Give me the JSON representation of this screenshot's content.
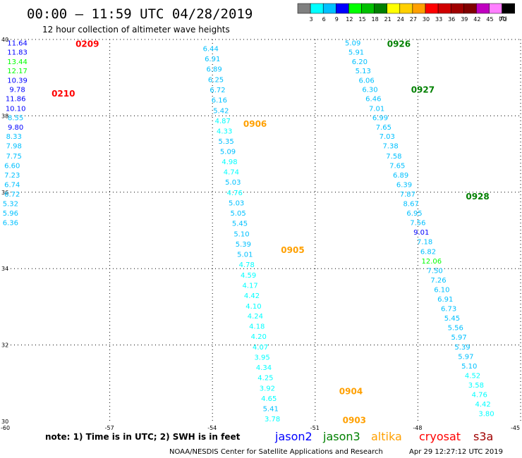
{
  "header": {
    "title": "00:00 – 11:59 UTC 04/28/2019",
    "subtitle": "12 hour collection of altimeter wave heights"
  },
  "colors": {
    "grid": "#000000",
    "thresholds": [
      {
        "label": "",
        "color": "#808080"
      },
      {
        "label": "3",
        "color": "#00ffff"
      },
      {
        "label": "6",
        "color": "#00c0ff"
      },
      {
        "label": "9",
        "color": "#0000ff"
      },
      {
        "label": "12",
        "color": "#00ff00"
      },
      {
        "label": "15",
        "color": "#00c000"
      },
      {
        "label": "18",
        "color": "#008000"
      },
      {
        "label": "21",
        "color": "#ffff00"
      },
      {
        "label": "24",
        "color": "#ffd000"
      },
      {
        "label": "27",
        "color": "#ffa000"
      },
      {
        "label": "30",
        "color": "#ff0000"
      },
      {
        "label": "33",
        "color": "#d00000"
      },
      {
        "label": "36",
        "color": "#a00000"
      },
      {
        "label": "39",
        "color": "#800000"
      },
      {
        "label": "42",
        "color": "#c000c0"
      },
      {
        "label": "45",
        "color": "#ff80ff"
      },
      {
        "label": "70",
        "color": "#000000"
      }
    ],
    "unit": "(ft)"
  },
  "chart_data": {
    "type": "scatter",
    "xlim": [
      -60,
      -45
    ],
    "ylim": [
      30,
      40
    ],
    "xticks": [
      "-60",
      "-57",
      "-54",
      "-51",
      "-48",
      "-45"
    ],
    "yticks": [
      "30",
      "32",
      "34",
      "36",
      "38",
      "40"
    ],
    "grid": true,
    "tracks": [
      {
        "pass": "0209",
        "satellite": "cryosat",
        "x": -58.0,
        "y": 39.9
      },
      {
        "pass": "0210",
        "satellite": "cryosat",
        "x": -58.7,
        "y": 38.6
      },
      {
        "pass": "0906",
        "satellite": "altika",
        "x": -53.1,
        "y": 37.8
      },
      {
        "pass": "0905",
        "satellite": "altika",
        "x": -52.0,
        "y": 34.5
      },
      {
        "pass": "0904",
        "satellite": "altika",
        "x": -50.3,
        "y": 30.8
      },
      {
        "pass": "0903",
        "satellite": "altika",
        "x": -50.2,
        "y": 30.05
      },
      {
        "pass": "0926",
        "satellite": "jason3",
        "x": -48.9,
        "y": 39.9
      },
      {
        "pass": "0927",
        "satellite": "jason3",
        "x": -48.2,
        "y": 38.7
      },
      {
        "pass": "0928",
        "satellite": "jason3",
        "x": -46.6,
        "y": 35.9
      }
    ],
    "observations": [
      {
        "x": -59.7,
        "y": 39.92,
        "v": "11.64",
        "c": "#0000ff"
      },
      {
        "x": -59.7,
        "y": 39.68,
        "v": "11.83",
        "c": "#0000ff"
      },
      {
        "x": -59.7,
        "y": 39.43,
        "v": "13.44",
        "c": "#00ff00"
      },
      {
        "x": -59.7,
        "y": 39.19,
        "v": "12.17",
        "c": "#00ff00"
      },
      {
        "x": -59.7,
        "y": 38.94,
        "v": "10.39",
        "c": "#0000ff"
      },
      {
        "x": -59.7,
        "y": 38.7,
        "v": "9.78",
        "c": "#0000ff"
      },
      {
        "x": -59.75,
        "y": 38.46,
        "v": "11.86",
        "c": "#0000ff"
      },
      {
        "x": -59.75,
        "y": 38.2,
        "v": "10.10",
        "c": "#0000ff"
      },
      {
        "x": -59.75,
        "y": 37.96,
        "v": "8.55",
        "c": "#00c0ff"
      },
      {
        "x": -59.75,
        "y": 37.71,
        "v": "9.80",
        "c": "#0000ff"
      },
      {
        "x": -59.8,
        "y": 37.47,
        "v": "8.33",
        "c": "#00c0ff"
      },
      {
        "x": -59.8,
        "y": 37.22,
        "v": "7.98",
        "c": "#00c0ff"
      },
      {
        "x": -59.8,
        "y": 36.96,
        "v": "7.75",
        "c": "#00c0ff"
      },
      {
        "x": -59.85,
        "y": 36.71,
        "v": "6.60",
        "c": "#00c0ff"
      },
      {
        "x": -59.85,
        "y": 36.46,
        "v": "7.23",
        "c": "#00c0ff"
      },
      {
        "x": -59.85,
        "y": 36.21,
        "v": "6.74",
        "c": "#00c0ff"
      },
      {
        "x": -59.85,
        "y": 35.96,
        "v": "6.72",
        "c": "#00c0ff"
      },
      {
        "x": -59.9,
        "y": 35.71,
        "v": "5.32",
        "c": "#00c0ff"
      },
      {
        "x": -59.9,
        "y": 35.46,
        "v": "5.96",
        "c": "#00c0ff"
      },
      {
        "x": -59.9,
        "y": 35.21,
        "v": "6.36",
        "c": "#00c0ff"
      },
      {
        "x": -54.05,
        "y": 39.77,
        "v": "6.44",
        "c": "#00c0ff"
      },
      {
        "x": -54.0,
        "y": 39.5,
        "v": "6.91",
        "c": "#00c0ff"
      },
      {
        "x": -53.95,
        "y": 39.23,
        "v": "6.89",
        "c": "#00c0ff"
      },
      {
        "x": -53.9,
        "y": 38.96,
        "v": "6.25",
        "c": "#00c0ff"
      },
      {
        "x": -53.85,
        "y": 38.69,
        "v": "6.72",
        "c": "#00c0ff"
      },
      {
        "x": -53.8,
        "y": 38.42,
        "v": "6.16",
        "c": "#00c0ff"
      },
      {
        "x": -53.75,
        "y": 38.15,
        "v": "5.42",
        "c": "#00c0ff"
      },
      {
        "x": -53.7,
        "y": 37.88,
        "v": "4.87",
        "c": "#00ffff"
      },
      {
        "x": -53.65,
        "y": 37.61,
        "v": "4.33",
        "c": "#00ffff"
      },
      {
        "x": -53.6,
        "y": 37.34,
        "v": "5.35",
        "c": "#00c0ff"
      },
      {
        "x": -53.55,
        "y": 37.08,
        "v": "5.09",
        "c": "#00c0ff"
      },
      {
        "x": -53.5,
        "y": 36.81,
        "v": "4.98",
        "c": "#00ffff"
      },
      {
        "x": -53.45,
        "y": 36.54,
        "v": "4.74",
        "c": "#00ffff"
      },
      {
        "x": -53.4,
        "y": 36.27,
        "v": "5.03",
        "c": "#00c0ff"
      },
      {
        "x": -53.35,
        "y": 36.0,
        "v": "4.76",
        "c": "#00ffff"
      },
      {
        "x": -53.3,
        "y": 35.73,
        "v": "5.03",
        "c": "#00c0ff"
      },
      {
        "x": -53.25,
        "y": 35.46,
        "v": "5.05",
        "c": "#00c0ff"
      },
      {
        "x": -53.2,
        "y": 35.19,
        "v": "5.45",
        "c": "#00c0ff"
      },
      {
        "x": -53.15,
        "y": 34.92,
        "v": "5.10",
        "c": "#00c0ff"
      },
      {
        "x": -53.1,
        "y": 34.65,
        "v": "5.39",
        "c": "#00c0ff"
      },
      {
        "x": -53.05,
        "y": 34.38,
        "v": "5.01",
        "c": "#00c0ff"
      },
      {
        "x": -53.0,
        "y": 34.11,
        "v": "4.78",
        "c": "#00ffff"
      },
      {
        "x": -52.95,
        "y": 33.84,
        "v": "4.59",
        "c": "#00ffff"
      },
      {
        "x": -52.9,
        "y": 33.57,
        "v": "4.17",
        "c": "#00ffff"
      },
      {
        "x": -52.85,
        "y": 33.3,
        "v": "4.42",
        "c": "#00ffff"
      },
      {
        "x": -52.8,
        "y": 33.03,
        "v": "4.10",
        "c": "#00ffff"
      },
      {
        "x": -52.75,
        "y": 32.77,
        "v": "4.24",
        "c": "#00ffff"
      },
      {
        "x": -52.7,
        "y": 32.5,
        "v": "4.18",
        "c": "#00ffff"
      },
      {
        "x": -52.65,
        "y": 32.23,
        "v": "4.20",
        "c": "#00ffff"
      },
      {
        "x": -52.6,
        "y": 31.96,
        "v": "4.07",
        "c": "#00ffff"
      },
      {
        "x": -52.55,
        "y": 31.69,
        "v": "3.95",
        "c": "#00ffff"
      },
      {
        "x": -52.5,
        "y": 31.42,
        "v": "4.34",
        "c": "#00ffff"
      },
      {
        "x": -52.45,
        "y": 31.15,
        "v": "4.25",
        "c": "#00ffff"
      },
      {
        "x": -52.4,
        "y": 30.88,
        "v": "3.92",
        "c": "#00ffff"
      },
      {
        "x": -52.35,
        "y": 30.61,
        "v": "4.65",
        "c": "#00ffff"
      },
      {
        "x": -52.3,
        "y": 30.34,
        "v": "5.41",
        "c": "#00c0ff"
      },
      {
        "x": -52.25,
        "y": 30.07,
        "v": "3.78",
        "c": "#00ffff"
      },
      {
        "x": -52.2,
        "y": 29.8,
        "v": "3.22",
        "c": "#00ffff"
      },
      {
        "x": -52.15,
        "y": 29.53,
        "v": "4.15",
        "c": "#00ffff"
      },
      {
        "x": -52.1,
        "y": 29.26,
        "v": "4.17",
        "c": "#00ffff"
      },
      {
        "x": -52.05,
        "y": 29.05,
        "v": "3.54",
        "c": "#00ffff"
      },
      {
        "x": -49.9,
        "y": 39.92,
        "v": "5.09",
        "c": "#00c0ff"
      },
      {
        "x": -49.8,
        "y": 39.68,
        "v": "5.91",
        "c": "#00c0ff"
      },
      {
        "x": -49.7,
        "y": 39.43,
        "v": "6.20",
        "c": "#00c0ff"
      },
      {
        "x": -49.6,
        "y": 39.19,
        "v": "5.13",
        "c": "#00c0ff"
      },
      {
        "x": -49.5,
        "y": 38.94,
        "v": "6.06",
        "c": "#00c0ff"
      },
      {
        "x": -49.4,
        "y": 38.7,
        "v": "6.30",
        "c": "#00c0ff"
      },
      {
        "x": -49.3,
        "y": 38.46,
        "v": "6.46",
        "c": "#00c0ff"
      },
      {
        "x": -49.2,
        "y": 38.2,
        "v": "7.01",
        "c": "#00c0ff"
      },
      {
        "x": -49.1,
        "y": 37.96,
        "v": "6.99",
        "c": "#00c0ff"
      },
      {
        "x": -49.0,
        "y": 37.71,
        "v": "7.65",
        "c": "#00c0ff"
      },
      {
        "x": -48.9,
        "y": 37.47,
        "v": "7.03",
        "c": "#00c0ff"
      },
      {
        "x": -48.8,
        "y": 37.22,
        "v": "7.38",
        "c": "#00c0ff"
      },
      {
        "x": -48.7,
        "y": 36.96,
        "v": "7.58",
        "c": "#00c0ff"
      },
      {
        "x": -48.6,
        "y": 36.71,
        "v": "7.65",
        "c": "#00c0ff"
      },
      {
        "x": -48.5,
        "y": 36.46,
        "v": "6.89",
        "c": "#00c0ff"
      },
      {
        "x": -48.4,
        "y": 36.21,
        "v": "6.39",
        "c": "#00c0ff"
      },
      {
        "x": -48.3,
        "y": 35.96,
        "v": "7.87",
        "c": "#00c0ff"
      },
      {
        "x": -48.2,
        "y": 35.71,
        "v": "8.67",
        "c": "#00c0ff"
      },
      {
        "x": -48.1,
        "y": 35.46,
        "v": "6.95",
        "c": "#00c0ff"
      },
      {
        "x": -48.0,
        "y": 35.21,
        "v": "7.56",
        "c": "#00c0ff"
      },
      {
        "x": -47.9,
        "y": 34.96,
        "v": "9.01",
        "c": "#0000ff"
      },
      {
        "x": -47.8,
        "y": 34.71,
        "v": "7.18",
        "c": "#00c0ff"
      },
      {
        "x": -47.7,
        "y": 34.46,
        "v": "6.82",
        "c": "#00c0ff"
      },
      {
        "x": -47.6,
        "y": 34.21,
        "v": "12.06",
        "c": "#00ff00"
      },
      {
        "x": -47.5,
        "y": 33.96,
        "v": "7.50",
        "c": "#00c0ff"
      },
      {
        "x": -47.4,
        "y": 33.71,
        "v": "7.26",
        "c": "#00c0ff"
      },
      {
        "x": -47.3,
        "y": 33.46,
        "v": "6.10",
        "c": "#00c0ff"
      },
      {
        "x": -47.2,
        "y": 33.21,
        "v": "6.91",
        "c": "#00c0ff"
      },
      {
        "x": -47.1,
        "y": 32.96,
        "v": "6.73",
        "c": "#00c0ff"
      },
      {
        "x": -47.0,
        "y": 32.71,
        "v": "5.45",
        "c": "#00c0ff"
      },
      {
        "x": -46.9,
        "y": 32.46,
        "v": "5.56",
        "c": "#00c0ff"
      },
      {
        "x": -46.8,
        "y": 32.21,
        "v": "5.97",
        "c": "#00c0ff"
      },
      {
        "x": -46.7,
        "y": 31.96,
        "v": "5.39",
        "c": "#00c0ff"
      },
      {
        "x": -46.6,
        "y": 31.71,
        "v": "5.97",
        "c": "#00c0ff"
      },
      {
        "x": -46.5,
        "y": 31.46,
        "v": "5.10",
        "c": "#00c0ff"
      },
      {
        "x": -46.4,
        "y": 31.21,
        "v": "4.52",
        "c": "#00ffff"
      },
      {
        "x": -46.3,
        "y": 30.96,
        "v": "3.58",
        "c": "#00ffff"
      },
      {
        "x": -46.2,
        "y": 30.71,
        "v": "4.76",
        "c": "#00ffff"
      },
      {
        "x": -46.1,
        "y": 30.46,
        "v": "4.42",
        "c": "#00ffff"
      },
      {
        "x": -46.0,
        "y": 30.21,
        "v": "3.80",
        "c": "#00ffff"
      }
    ]
  },
  "footer": {
    "note": "note: 1) Time is in UTC; 2) SWH is in feet",
    "satellites": [
      {
        "name": "jason2",
        "color": "#0000ff"
      },
      {
        "name": "jason3",
        "color": "#008000"
      },
      {
        "name": "altika",
        "color": "#ffa000"
      },
      {
        "name": "cryosat",
        "color": "#ff0000"
      },
      {
        "name": "s3a",
        "color": "#a00000"
      }
    ],
    "credit": "NOAA/NESDIS Center for Satellite Applications and Research",
    "timestamp": "Apr 29 12:27:12 UTC 2019"
  }
}
